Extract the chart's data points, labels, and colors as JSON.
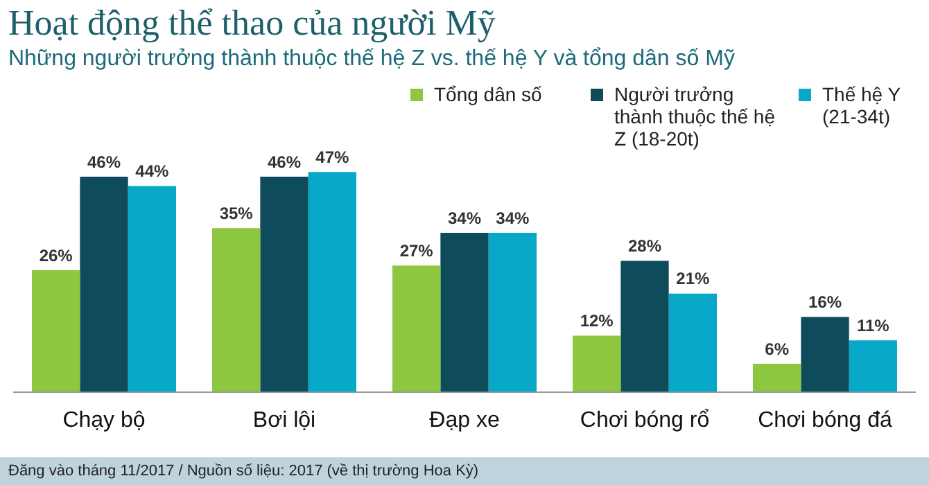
{
  "chart_data": {
    "type": "bar",
    "title": "Hoạt động thể thao của người Mỹ",
    "subtitle": "Những người trưởng thành thuộc thế hệ Z vs. thế hệ Y và tổng dân số Mỹ",
    "categories": [
      "Chạy bộ",
      "Bơi lội",
      "Đạp xe",
      "Chơi bóng rổ",
      "Chơi bóng đá"
    ],
    "series": [
      {
        "name": "Tổng dân số",
        "color": "#8dc63f",
        "values": [
          26,
          35,
          27,
          12,
          6
        ],
        "value_labels": [
          "26%",
          "35%",
          "27%",
          "12%",
          "6%"
        ]
      },
      {
        "name": "Người trưởng thành thuộc thế hệ Z (18-20t)",
        "color": "#0e4c5c",
        "values": [
          46,
          46,
          34,
          28,
          16
        ],
        "value_labels": [
          "46%",
          "46%",
          "34%",
          "28%",
          "16%"
        ]
      },
      {
        "name": "Thế hệ Y (21-34t)",
        "color": "#07a8c8",
        "values": [
          44,
          47,
          34,
          21,
          11
        ],
        "value_labels": [
          "44%",
          "47%",
          "34%",
          "21%",
          "11%"
        ]
      }
    ],
    "legend": "top right",
    "grid": false,
    "tick_labels": "x",
    "annotations": [
      "Đăng vào tháng 11/2017 / Nguồn số liệu: 2017 (về thị trường Hoa Kỳ)"
    ]
  }
}
